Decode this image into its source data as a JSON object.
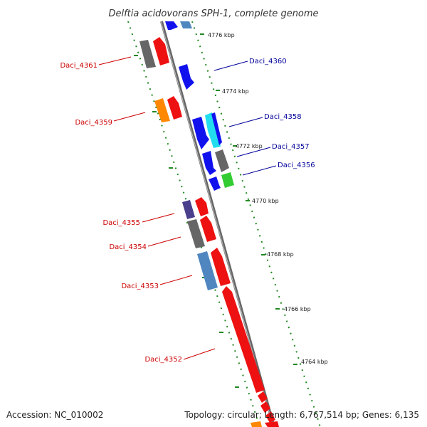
{
  "title": "Delftia acidovorans SPH-1, complete genome",
  "footer": {
    "accession": "Accession: NC_010002",
    "topology": "Topology: circular; Length: 6,767,514 bp; Genes: 6,135"
  },
  "ticks": [
    "4776 kbp",
    "4774 kbp",
    "4772 kbp",
    "4770 kbp",
    "4768 kbp",
    "4766 kbp",
    "4764 kbp"
  ],
  "left_genes": [
    "Daci_4361",
    "Daci_4359",
    "Daci_4355",
    "Daci_4354",
    "Daci_4353",
    "Daci_4352"
  ],
  "right_genes": [
    "Daci_4360",
    "Daci_4358",
    "Daci_4357",
    "Daci_4356"
  ],
  "colors": {
    "left_label": "#cc0000",
    "right_label": "#000099",
    "tick": "#228822",
    "axis": "#888888",
    "red": "#ee1111",
    "blue": "#1111ee",
    "gray": "#666666",
    "cyan": "#22ddee",
    "green": "#33cc33",
    "orange": "#ff8800",
    "steel": "#4f86c0",
    "purple": "#4a3f8c"
  }
}
